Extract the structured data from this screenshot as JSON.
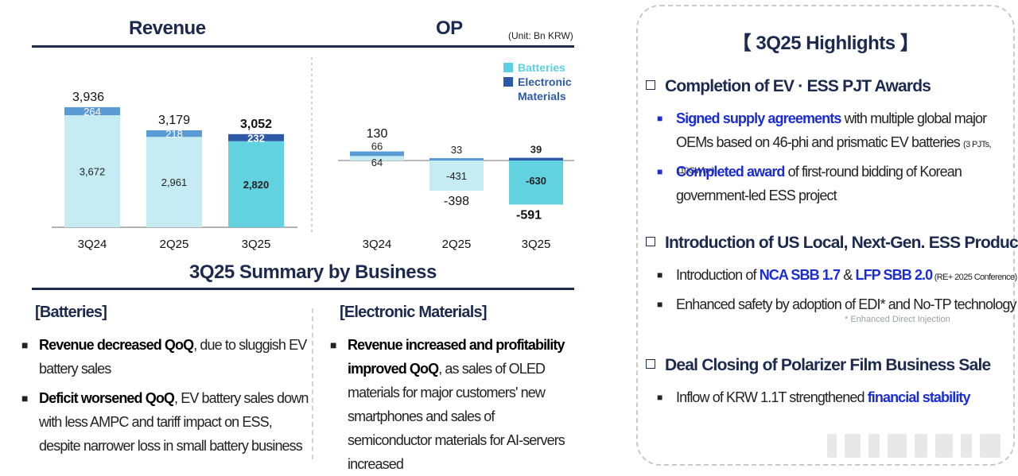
{
  "unit_label": "(Unit: Bn KRW)",
  "summary_title": "3Q25 Summary by Business",
  "legend": [
    {
      "label_lines": [
        "Batteries"
      ],
      "color": "#5bd0e0"
    },
    {
      "label_lines": [
        "Electronic",
        "Materials"
      ],
      "color": "#2c5aa8"
    }
  ],
  "chart_data": [
    {
      "type": "bar",
      "title": "Revenue",
      "categories": [
        "3Q24",
        "2Q25",
        "3Q25"
      ],
      "series": [
        {
          "name": "Batteries",
          "values": [
            3672,
            2961,
            2820
          ],
          "labels": [
            "3,672",
            "2,961",
            "2,820"
          ]
        },
        {
          "name": "Electronic Materials",
          "values": [
            264,
            218,
            232
          ],
          "labels": [
            "264",
            "218",
            "232"
          ]
        }
      ],
      "totals": [
        3936,
        3179,
        3052
      ],
      "total_labels": [
        "3,936",
        "3,179",
        "3,052"
      ],
      "highlight_index": 2,
      "colors": {
        "batteries": "#c5ecf2",
        "batteries_highlight": "#62d2e0",
        "electronic": "#5b9bd5",
        "electronic_highlight": "#2c5aa8"
      },
      "ylim": [
        0,
        4000
      ]
    },
    {
      "type": "bar",
      "title": "OP",
      "categories": [
        "3Q24",
        "2Q25",
        "3Q25"
      ],
      "series": [
        {
          "name": "Batteries",
          "values": [
            64,
            -431,
            -630
          ],
          "labels": [
            "64",
            "-431",
            "-630"
          ]
        },
        {
          "name": "Electronic Materials",
          "values": [
            66,
            33,
            39
          ],
          "labels": [
            "66",
            "33",
            "39"
          ]
        }
      ],
      "totals": [
        130,
        -398,
        -591
      ],
      "total_labels": [
        "130",
        "-398",
        "-591"
      ],
      "highlight_index": 2,
      "colors": {
        "batteries": "#c5ecf2",
        "batteries_highlight": "#62d2e0",
        "electronic": "#5b9bd5",
        "electronic_highlight": "#2c5aa8"
      },
      "ylim": [
        -700,
        200
      ]
    }
  ],
  "batteries": {
    "heading": "[Batteries]",
    "bullets": [
      {
        "bold": "Revenue decreased QoQ",
        "rest": ", due to sluggish EV battery sales"
      },
      {
        "bold": "Deficit worsened QoQ",
        "rest": ", EV battery sales down with less AMPC and tariff impact on ESS, despite narrower loss in small battery business"
      }
    ]
  },
  "electronic": {
    "heading": "[Electronic Materials]",
    "bullets": [
      {
        "bold": "Revenue increased and profitability improved QoQ",
        "rest": ", as sales of OLED materials for major customers' new smartphones and sales of semiconductor materials for AI-servers increased"
      }
    ]
  },
  "highlights": {
    "title": "【 3Q25 Highlights 】",
    "sections": [
      {
        "heading": "Completion of EV · ESS PJT Awards",
        "items": [
          {
            "em": "Signed supply agreements",
            "text": " with multiple global major OEMs based on 46-phi and prismatic EV batteries ",
            "small": "(3 PJTs, 110GWh+)"
          },
          {
            "em": "Completed award",
            "text": " of first-round bidding of Korean government-led ESS project",
            "small": ""
          }
        ]
      },
      {
        "heading": "Introduction of US Local, Next-Gen. ESS Products",
        "items": [
          {
            "pre": "Introduction of ",
            "em1": "NCA SBB 1.7",
            "mid": " & ",
            "em2": "LFP SBB 2.0",
            "small": " (RE+ 2025 Conference)"
          },
          {
            "text": "Enhanced safety by adoption of EDI* and No-TP technology",
            "note": "* Enhanced Direct Injection"
          }
        ]
      },
      {
        "heading": "Deal Closing of Polarizer Film Business Sale",
        "items": [
          {
            "pre": "Inflow of KRW 1.1T strengthened ",
            "em": "financial stability"
          }
        ]
      }
    ]
  }
}
